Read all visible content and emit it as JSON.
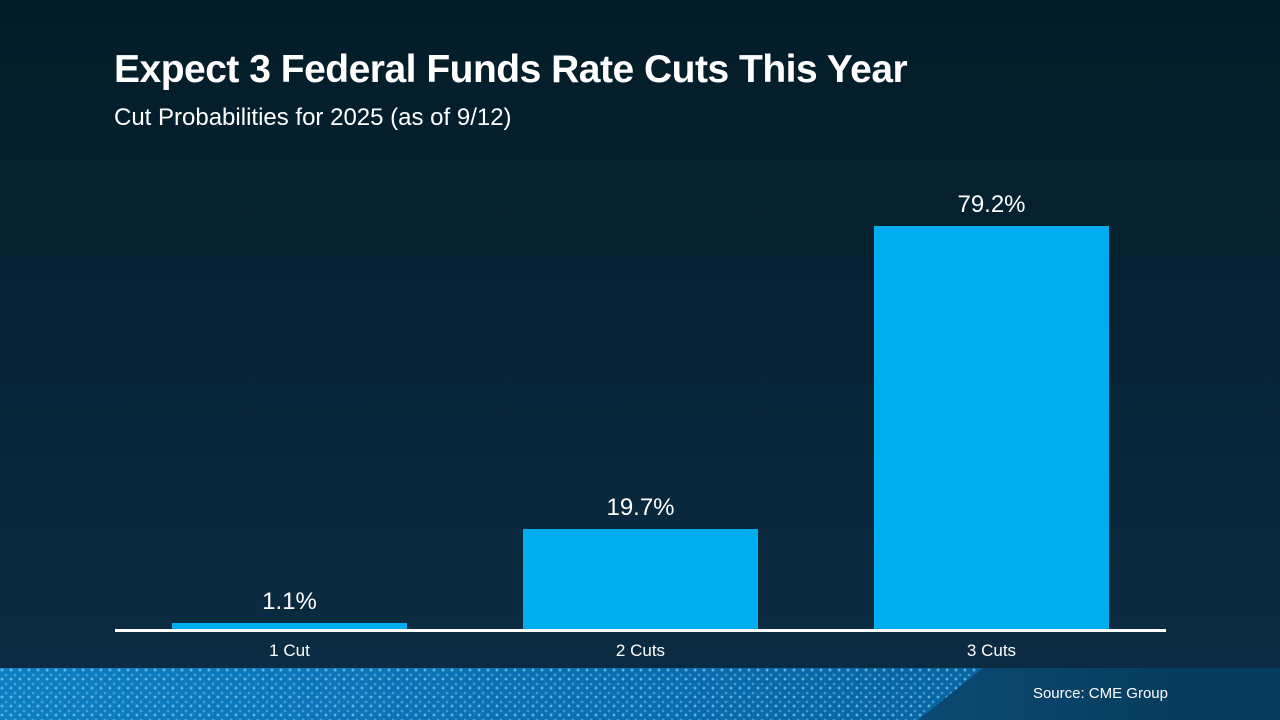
{
  "slide": {
    "title": "Expect 3 Federal Funds Rate Cuts This Year",
    "subtitle": "Cut Probabilities for 2025 (as of 9/12)",
    "source": "Source: CME Group"
  },
  "colors": {
    "bar": "#00AEEF",
    "background_top": "#041C28",
    "background_bottom": "#0C2C44",
    "axis": "#FFFFFF",
    "footer_left_blue": "#0E7FC2",
    "footer_right_blue": "#063D5E"
  },
  "chart_data": {
    "type": "bar",
    "title": "Expect 3 Federal Funds Rate Cuts This Year",
    "subtitle": "Cut Probabilities for 2025 (as of 9/12)",
    "categories": [
      "1 Cut",
      "2 Cuts",
      "3 Cuts"
    ],
    "values": [
      1.1,
      19.7,
      79.2
    ],
    "value_labels": [
      "1.1%",
      "19.7%",
      "79.2%"
    ],
    "unit": "%",
    "ylim": [
      0,
      85
    ],
    "grid": false,
    "legend": false,
    "bar_color": "#00AEEF",
    "source": "Source: CME Group"
  }
}
